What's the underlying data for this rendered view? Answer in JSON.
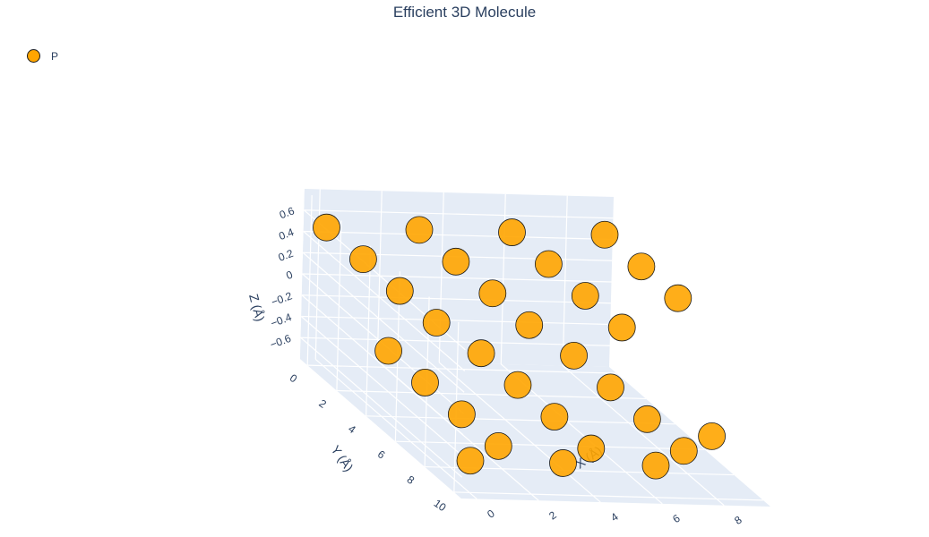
{
  "chart_data": {
    "type": "scatter3d",
    "title": "Efficient 3D Molecule",
    "legend": {
      "placement": "top-left",
      "entries": [
        {
          "name": "P",
          "color": "#FFA500"
        }
      ]
    },
    "axes": {
      "x": {
        "title": "X (Å)",
        "range": [
          -0.5,
          9.5
        ],
        "ticks": [
          "0",
          "2",
          "4",
          "6",
          "8"
        ]
      },
      "y": {
        "title": "Y (Å)",
        "range": [
          -0.5,
          10.5
        ],
        "ticks": [
          "0",
          "2",
          "4",
          "6",
          "8",
          "10"
        ]
      },
      "z": {
        "title": "Z (Å)",
        "range": [
          -0.8,
          0.8
        ],
        "ticks": [
          "−0.6",
          "−0.4",
          "−0.2",
          "0",
          "0.2",
          "0.4",
          "0.6"
        ]
      }
    },
    "grid": true,
    "background": "#E5ECF6",
    "marker": {
      "color": "#FFA500",
      "edge_color": "#1a1a1a",
      "opacity": 0.9
    },
    "series": [
      {
        "name": "P",
        "points": [
          [
            0.0,
            0.0,
            0.5
          ],
          [
            0.0,
            2.5,
            0.5
          ],
          [
            0.0,
            5.0,
            0.5
          ],
          [
            0.0,
            7.5,
            0.5
          ],
          [
            3.0,
            0.0,
            0.5
          ],
          [
            3.0,
            2.5,
            0.5
          ],
          [
            3.0,
            5.0,
            0.5
          ],
          [
            3.0,
            7.5,
            0.5
          ],
          [
            6.0,
            0.0,
            0.5
          ],
          [
            6.0,
            2.5,
            0.5
          ],
          [
            6.0,
            5.0,
            0.5
          ],
          [
            6.0,
            7.5,
            0.5
          ],
          [
            9.0,
            0.0,
            0.5
          ],
          [
            9.0,
            2.5,
            0.5
          ],
          [
            9.0,
            5.0,
            0.5
          ],
          [
            1.5,
            1.25,
            -0.5
          ],
          [
            1.5,
            3.75,
            -0.5
          ],
          [
            1.5,
            6.25,
            -0.5
          ],
          [
            1.5,
            8.75,
            -0.5
          ],
          [
            4.5,
            1.25,
            -0.5
          ],
          [
            4.5,
            3.75,
            -0.5
          ],
          [
            4.5,
            6.25,
            -0.5
          ],
          [
            4.5,
            8.75,
            -0.5
          ],
          [
            7.5,
            1.25,
            -0.5
          ],
          [
            7.5,
            3.75,
            -0.5
          ],
          [
            7.5,
            6.25,
            -0.5
          ],
          [
            7.5,
            8.75,
            -0.5
          ],
          [
            0.0,
            10.0,
            -0.5
          ],
          [
            9.0,
            7.5,
            -0.5
          ],
          [
            3.0,
            10.0,
            -0.5
          ],
          [
            6.0,
            10.0,
            -0.5
          ]
        ]
      }
    ]
  }
}
